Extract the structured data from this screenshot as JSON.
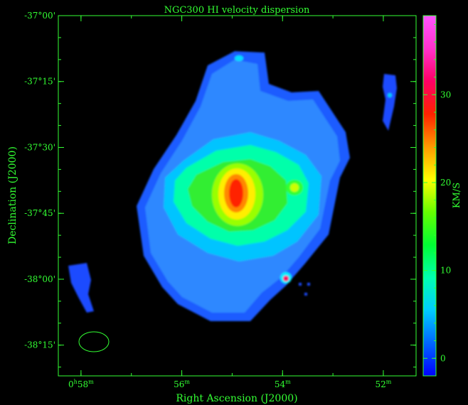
{
  "chart_data": {
    "type": "heatmap",
    "title": "NGC300   HI velocity dispersion",
    "xlabel": "Right Ascension (J2000)",
    "ylabel": "Declination (J2000)",
    "colorbar_label": "KM/S",
    "axis_color": "#33ff33",
    "background": "#000000",
    "x_ticks": [
      {
        "pre": "0",
        "sup1": "h",
        "mid": "58",
        "sup2": "m",
        "ra_min": 58.0
      },
      {
        "pre": "",
        "sup1": "",
        "mid": "56",
        "sup2": "m",
        "ra_min": 56.0
      },
      {
        "pre": "",
        "sup1": "",
        "mid": "54",
        "sup2": "m",
        "ra_min": 54.0
      },
      {
        "pre": "",
        "sup1": "",
        "mid": "52",
        "sup2": "m",
        "ra_min": 52.0
      }
    ],
    "ra_range_min": [
      58.45,
      51.35
    ],
    "y_ticks": [
      {
        "label": "-37°00'",
        "dec_arcmin": -2220
      },
      {
        "label": "-37°15'",
        "dec_arcmin": -2235
      },
      {
        "label": "-37°30'",
        "dec_arcmin": -2250
      },
      {
        "label": "-37°45'",
        "dec_arcmin": -2265
      },
      {
        "label": "-38°00'",
        "dec_arcmin": -2280
      },
      {
        "label": "-38°15'",
        "dec_arcmin": -2295
      }
    ],
    "dec_range_arcmin": [
      -2220,
      -2302
    ],
    "colorbar": {
      "range": [
        -2,
        39
      ],
      "ticks": [
        0,
        10,
        20,
        30
      ],
      "colors": [
        "#0000ff",
        "#0066ff",
        "#00ccff",
        "#00ffb0",
        "#00ff33",
        "#66ff00",
        "#ffff00",
        "#ff9900",
        "#ff2200",
        "#ff0066",
        "#ff33cc",
        "#ff55ff"
      ]
    },
    "beam": {
      "label": "beam"
    }
  }
}
